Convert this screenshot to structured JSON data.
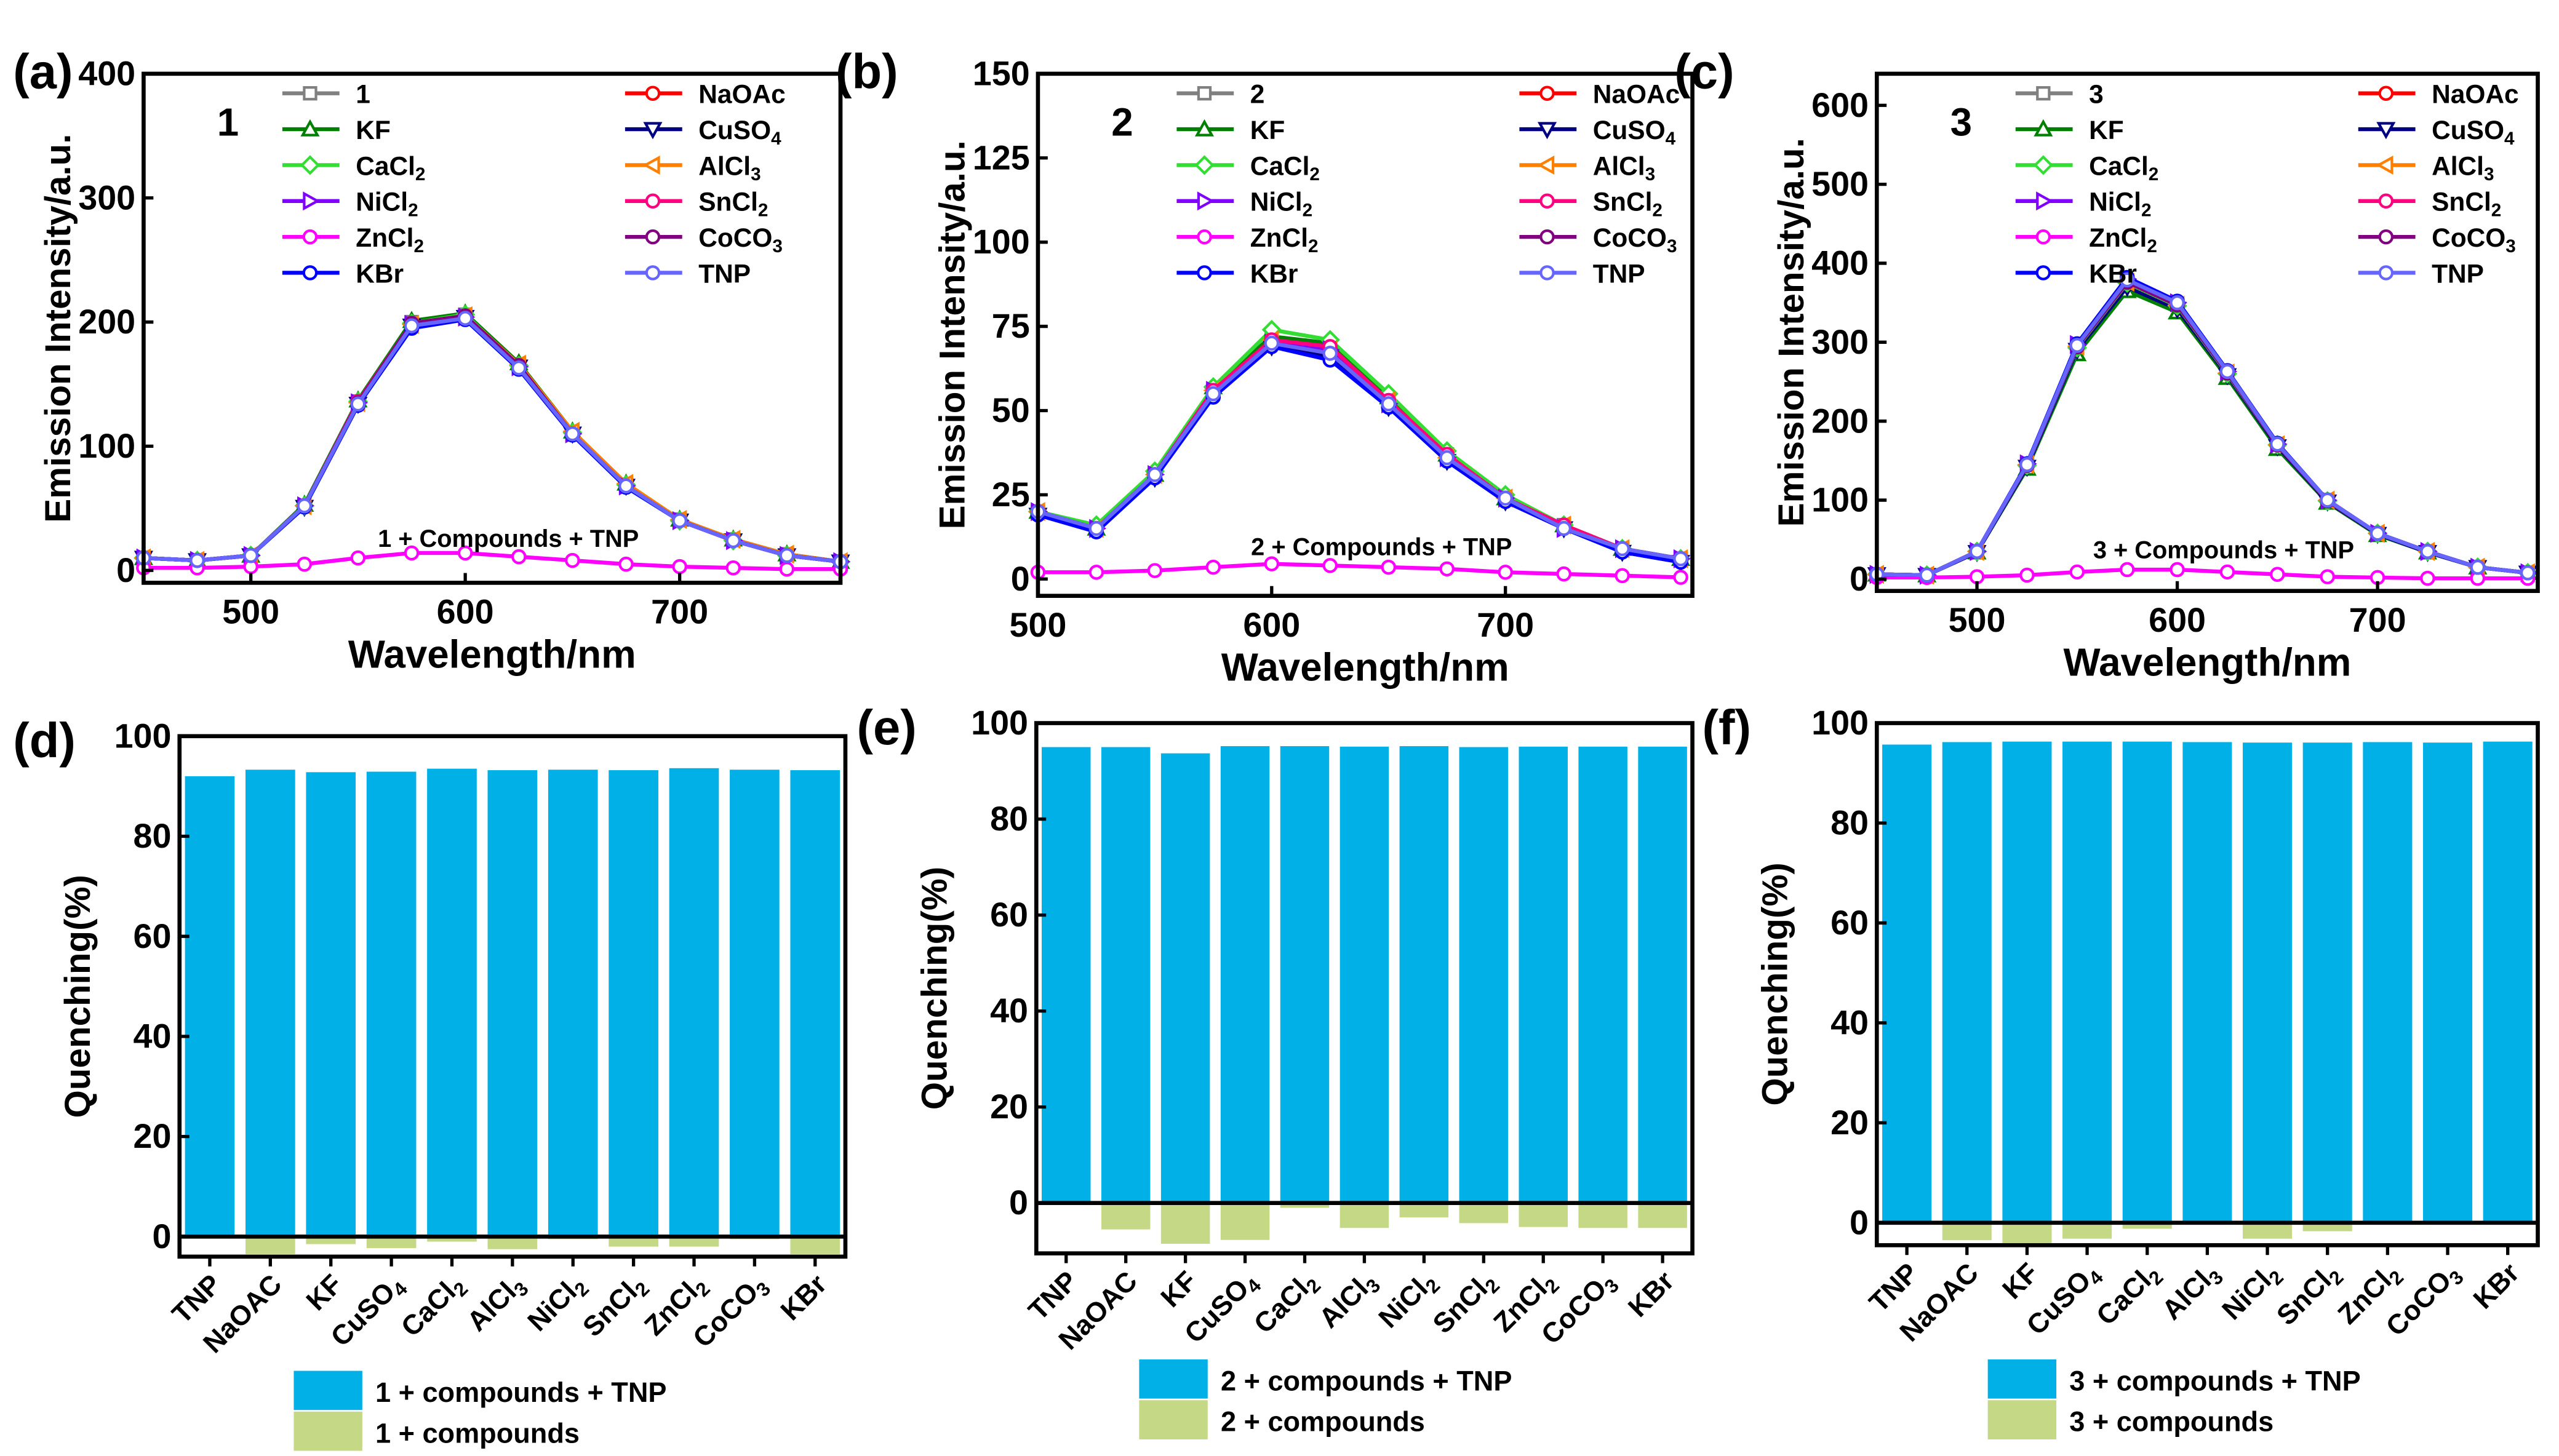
{
  "chart_data": [
    {
      "type": "line",
      "panel_label": "(a)",
      "sample_label": "1",
      "xlabel": "Wavelength/nm",
      "ylabel": "Emission Intensity/a.u.",
      "xlim": [
        450,
        775
      ],
      "ylim": [
        -10,
        400
      ],
      "xticks": [
        500,
        600,
        700
      ],
      "yticks": [
        0,
        100,
        200,
        300,
        400
      ],
      "annotation": "1 + Compounds + TNP",
      "x": [
        450,
        475,
        500,
        525,
        550,
        575,
        600,
        625,
        650,
        675,
        700,
        725,
        750,
        775
      ],
      "series": [
        {
          "name": "1",
          "color": "#808080",
          "marker": "square",
          "values": [
            10,
            8,
            12,
            52,
            136,
            200,
            206,
            166,
            111,
            69,
            41,
            25,
            13,
            7
          ]
        },
        {
          "name": "NaOAc",
          "color": "#ff0000",
          "marker": "circle",
          "values": [
            10,
            8,
            12,
            52,
            135,
            198,
            205,
            165,
            110,
            68,
            40,
            24,
            12,
            7
          ]
        },
        {
          "name": "KF",
          "color": "#008000",
          "marker": "triangle-up",
          "values": [
            10,
            8,
            12,
            53,
            137,
            201,
            207,
            167,
            112,
            70,
            41,
            25,
            13,
            7
          ]
        },
        {
          "name": "CuSO4",
          "color": "#000080",
          "marker": "triangle-down",
          "values": [
            10,
            8,
            12,
            51,
            134,
            197,
            204,
            164,
            110,
            68,
            40,
            24,
            12,
            7
          ]
        },
        {
          "name": "CaCl2",
          "color": "#33dd33",
          "marker": "diamond",
          "values": [
            10,
            8,
            12,
            52,
            136,
            199,
            206,
            165,
            111,
            69,
            40,
            24,
            12,
            7
          ]
        },
        {
          "name": "AlCl3",
          "color": "#ff8000",
          "marker": "triangle-left",
          "values": [
            10,
            8,
            12,
            52,
            135,
            198,
            205,
            166,
            112,
            70,
            41,
            25,
            13,
            7
          ]
        },
        {
          "name": "NiCl2",
          "color": "#8000ff",
          "marker": "triangle-right",
          "values": [
            10,
            8,
            12,
            52,
            135,
            198,
            204,
            164,
            110,
            68,
            40,
            24,
            12,
            7
          ]
        },
        {
          "name": "SnCl2",
          "color": "#ff0080",
          "marker": "circle",
          "values": [
            10,
            8,
            12,
            52,
            136,
            199,
            205,
            165,
            110,
            68,
            40,
            24,
            12,
            7
          ]
        },
        {
          "name": "ZnCl2",
          "color": "#ff00ff",
          "marker": "circle",
          "values": [
            2,
            2,
            3,
            5,
            10,
            14,
            14,
            11,
            8,
            5,
            3,
            2,
            1,
            1
          ]
        },
        {
          "name": "CoCO3",
          "color": "#800080",
          "marker": "circle",
          "values": [
            10,
            8,
            12,
            52,
            135,
            199,
            205,
            165,
            110,
            68,
            40,
            24,
            12,
            7
          ]
        },
        {
          "name": "KBr",
          "color": "#0000ff",
          "marker": "circle",
          "values": [
            10,
            8,
            12,
            51,
            133,
            195,
            202,
            162,
            109,
            67,
            40,
            24,
            12,
            7
          ]
        },
        {
          "name": "TNP",
          "color": "#6666ff",
          "marker": "circle",
          "values": [
            10,
            8,
            12,
            52,
            134,
            197,
            203,
            163,
            110,
            68,
            40,
            24,
            12,
            7
          ]
        }
      ]
    },
    {
      "type": "line",
      "panel_label": "(b)",
      "sample_label": "2",
      "xlabel": "Wavelength/nm",
      "ylabel": "Emission Intensity/a.u.",
      "xlim": [
        500,
        780
      ],
      "ylim": [
        -5,
        150
      ],
      "xticks": [
        500,
        600,
        700
      ],
      "yticks": [
        0,
        25,
        50,
        75,
        100,
        125,
        150
      ],
      "annotation": "2 + Compounds + TNP",
      "x": [
        500,
        525,
        550,
        575,
        600,
        625,
        650,
        675,
        700,
        725,
        750,
        775
      ],
      "series": [
        {
          "name": "2",
          "color": "#808080",
          "marker": "square",
          "values": [
            20,
            15,
            31,
            56,
            71,
            69,
            53,
            37,
            24,
            16,
            9,
            6
          ]
        },
        {
          "name": "NaOAc",
          "color": "#ff0000",
          "marker": "circle",
          "values": [
            20,
            15,
            31,
            56,
            71,
            69,
            53,
            37,
            24,
            16,
            9,
            6
          ]
        },
        {
          "name": "KF",
          "color": "#008000",
          "marker": "triangle-up",
          "values": [
            20,
            15,
            31,
            57,
            72,
            70,
            54,
            37,
            24,
            16,
            9,
            6
          ]
        },
        {
          "name": "CuSO4",
          "color": "#000080",
          "marker": "triangle-down",
          "values": [
            19,
            15,
            30,
            55,
            69,
            66,
            51,
            35,
            23,
            15,
            8,
            5
          ]
        },
        {
          "name": "CaCl2",
          "color": "#33dd33",
          "marker": "diamond",
          "values": [
            20,
            16,
            32,
            57,
            74,
            71,
            55,
            38,
            25,
            16,
            9,
            6
          ]
        },
        {
          "name": "AlCl3",
          "color": "#ff8000",
          "marker": "triangle-left",
          "values": [
            20,
            15,
            31,
            56,
            71,
            68,
            53,
            36,
            24,
            16,
            9,
            6
          ]
        },
        {
          "name": "NiCl2",
          "color": "#8000ff",
          "marker": "triangle-right",
          "values": [
            20,
            15,
            31,
            56,
            70,
            68,
            52,
            36,
            24,
            15,
            9,
            6
          ]
        },
        {
          "name": "SnCl2",
          "color": "#ff0080",
          "marker": "circle",
          "values": [
            20,
            15,
            31,
            56,
            71,
            69,
            53,
            37,
            24,
            16,
            9,
            6
          ]
        },
        {
          "name": "ZnCl2",
          "color": "#ff00ff",
          "marker": "circle",
          "values": [
            2,
            2,
            2.5,
            3.5,
            4.5,
            4,
            3.5,
            3,
            2,
            1.5,
            1,
            0.5
          ]
        },
        {
          "name": "CoCO3",
          "color": "#800080",
          "marker": "circle",
          "values": [
            20,
            15,
            31,
            55,
            70,
            67,
            52,
            36,
            24,
            15,
            9,
            6
          ]
        },
        {
          "name": "KBr",
          "color": "#0000ff",
          "marker": "circle",
          "values": [
            19,
            14,
            30,
            54,
            69,
            65,
            51,
            35,
            23,
            15,
            8,
            5
          ]
        },
        {
          "name": "TNP",
          "color": "#6666ff",
          "marker": "circle",
          "values": [
            20,
            15,
            31,
            55,
            70,
            67,
            52,
            36,
            24,
            15,
            9,
            6
          ]
        }
      ]
    },
    {
      "type": "line",
      "panel_label": "(c)",
      "sample_label": "3",
      "xlabel": "Wavelength/nm",
      "ylabel": "Emission Intensity/a.u.",
      "xlim": [
        450,
        780
      ],
      "ylim": [
        -15,
        640
      ],
      "xticks": [
        500,
        600,
        700
      ],
      "yticks": [
        0,
        100,
        200,
        300,
        400,
        500,
        600
      ],
      "annotation": "3 + Compounds + TNP",
      "x": [
        450,
        475,
        500,
        525,
        550,
        575,
        600,
        625,
        650,
        675,
        700,
        725,
        750,
        775
      ],
      "series": [
        {
          "name": "3",
          "color": "#808080",
          "marker": "square",
          "values": [
            6,
            5,
            35,
            145,
            295,
            378,
            348,
            262,
            170,
            100,
            58,
            35,
            15,
            8
          ]
        },
        {
          "name": "NaOAc",
          "color": "#ff0000",
          "marker": "circle",
          "values": [
            6,
            5,
            35,
            145,
            296,
            380,
            350,
            263,
            171,
            100,
            58,
            35,
            15,
            8
          ]
        },
        {
          "name": "KF",
          "color": "#008000",
          "marker": "triangle-up",
          "values": [
            6,
            5,
            34,
            140,
            285,
            365,
            338,
            255,
            165,
            97,
            56,
            34,
            15,
            8
          ]
        },
        {
          "name": "CuSO4",
          "color": "#000080",
          "marker": "triangle-down",
          "values": [
            6,
            5,
            34,
            142,
            290,
            370,
            342,
            258,
            168,
            98,
            57,
            34,
            15,
            8
          ]
        },
        {
          "name": "CaCl2",
          "color": "#33dd33",
          "marker": "diamond",
          "values": [
            6,
            5,
            35,
            144,
            293,
            375,
            346,
            260,
            170,
            99,
            58,
            35,
            15,
            8
          ]
        },
        {
          "name": "AlCl3",
          "color": "#ff8000",
          "marker": "triangle-left",
          "values": [
            6,
            5,
            35,
            145,
            295,
            376,
            347,
            261,
            170,
            100,
            58,
            35,
            15,
            8
          ]
        },
        {
          "name": "NiCl2",
          "color": "#8000ff",
          "marker": "triangle-right",
          "values": [
            6,
            5,
            35,
            146,
            297,
            380,
            350,
            263,
            171,
            100,
            58,
            35,
            15,
            8
          ]
        },
        {
          "name": "SnCl2",
          "color": "#ff0080",
          "marker": "circle",
          "values": [
            6,
            5,
            35,
            145,
            296,
            378,
            349,
            262,
            170,
            100,
            58,
            35,
            15,
            8
          ]
        },
        {
          "name": "ZnCl2",
          "color": "#ff00ff",
          "marker": "circle",
          "values": [
            2,
            2,
            3,
            5,
            9,
            12,
            12,
            9,
            6,
            3,
            2,
            1,
            1,
            1
          ]
        },
        {
          "name": "CoCO3",
          "color": "#800080",
          "marker": "circle",
          "values": [
            6,
            5,
            35,
            144,
            294,
            376,
            347,
            261,
            170,
            99,
            58,
            35,
            15,
            8
          ]
        },
        {
          "name": "KBr",
          "color": "#0000ff",
          "marker": "circle",
          "values": [
            6,
            5,
            35,
            146,
            298,
            382,
            352,
            264,
            172,
            100,
            58,
            35,
            15,
            8
          ]
        },
        {
          "name": "TNP",
          "color": "#6666ff",
          "marker": "circle",
          "values": [
            6,
            5,
            35,
            145,
            296,
            379,
            350,
            263,
            171,
            100,
            58,
            35,
            15,
            8
          ]
        }
      ]
    },
    {
      "type": "bar",
      "panel_label": "(d)",
      "ylabel": "Quenching(%)",
      "ylim": [
        -4,
        100
      ],
      "yticks": [
        0,
        20,
        40,
        60,
        80,
        100
      ],
      "categories": [
        "TNP",
        "NaOAC",
        "KF",
        "CuSO4",
        "CaCl2",
        "AlCl3",
        "NiCl2",
        "SnCl2",
        "ZnCl2",
        "CoCO3",
        "KBr"
      ],
      "series": [
        {
          "name": "1 + compounds + TNP",
          "color": "#00b0e6",
          "values": [
            92,
            93.3,
            92.8,
            92.9,
            93.5,
            93.2,
            93.3,
            93.2,
            93.6,
            93.3,
            93.2
          ]
        },
        {
          "name": "1 + compounds",
          "color": "#c4d886",
          "values": [
            0,
            -3.5,
            -1.5,
            -2.3,
            -1,
            -2.5,
            -0.5,
            -2,
            -2,
            -0.5,
            -3.5
          ]
        }
      ]
    },
    {
      "type": "bar",
      "panel_label": "(e)",
      "ylabel": "Quenching(%)",
      "ylim": [
        -10.5,
        100
      ],
      "yticks": [
        0,
        20,
        40,
        60,
        80,
        100
      ],
      "categories": [
        "TNP",
        "NaOAC",
        "KF",
        "CuSO4",
        "CaCl2",
        "AlCl3",
        "NiCl2",
        "SnCl2",
        "ZnCl2",
        "CoCO3",
        "KBr"
      ],
      "series": [
        {
          "name": "2 + compounds + TNP",
          "color": "#00b0e6",
          "values": [
            95,
            95,
            93.7,
            95.2,
            95.2,
            95.1,
            95.2,
            95,
            95.1,
            95.1,
            95.1
          ]
        },
        {
          "name": "2 + compounds",
          "color": "#c4d886",
          "values": [
            0,
            -5.5,
            -8.5,
            -7.7,
            -1,
            -5.2,
            -3,
            -4.2,
            -5,
            -5.2,
            -5.2
          ]
        }
      ]
    },
    {
      "type": "bar",
      "panel_label": "(f)",
      "ylabel": "Quenching(%)",
      "ylim": [
        -4.5,
        100
      ],
      "yticks": [
        0,
        20,
        40,
        60,
        80,
        100
      ],
      "categories": [
        "TNP",
        "NaOAC",
        "KF",
        "CuSO4",
        "CaCl2",
        "AlCl3",
        "NiCl2",
        "SnCl2",
        "ZnCl2",
        "CoCO3",
        "KBr"
      ],
      "series": [
        {
          "name": "3 + compounds + TNP",
          "color": "#00b0e6",
          "values": [
            95.7,
            96.2,
            96.3,
            96.3,
            96.3,
            96.2,
            96.1,
            96.1,
            96.2,
            96.1,
            96.3
          ]
        },
        {
          "name": "3 + compounds",
          "color": "#c4d886",
          "values": [
            0,
            -3.5,
            -4.5,
            -3.2,
            -1.2,
            -0.3,
            -3.2,
            -1.7,
            -0.3,
            -0.3,
            -0.3
          ]
        }
      ]
    }
  ]
}
